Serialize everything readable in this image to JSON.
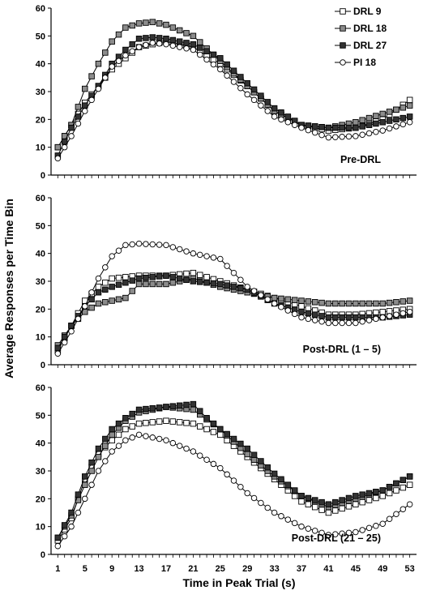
{
  "chart_data": {
    "type": "line",
    "ylabel": "Average Responses per Time Bin",
    "xlabel": "Time in Peak Trial (s)",
    "x_ticks": [
      1,
      5,
      9,
      13,
      17,
      21,
      25,
      29,
      33,
      37,
      41,
      45,
      49,
      53
    ],
    "x_range": [
      0,
      54
    ],
    "legend": {
      "placement": "top-right",
      "entries": [
        "DRL 9",
        "DRL 18",
        "DRL 27",
        "PI 18"
      ]
    },
    "series_styles": [
      {
        "name": "DRL 9",
        "marker": "square",
        "fill": "#ffffff"
      },
      {
        "name": "DRL 18",
        "marker": "square",
        "fill": "#8c8c8c"
      },
      {
        "name": "DRL 27",
        "marker": "square",
        "fill": "#333333"
      },
      {
        "name": "PI 18",
        "marker": "circle",
        "fill": "#ffffff"
      }
    ],
    "panels": [
      {
        "label": "Pre-DRL",
        "ylim": [
          0,
          60
        ],
        "yticks": [
          0,
          10,
          20,
          30,
          40,
          50,
          60
        ],
        "series": [
          {
            "name": "DRL 9",
            "keypoints": [
              [
                1,
                10
              ],
              [
                5,
                26
              ],
              [
                9,
                38
              ],
              [
                13,
                46
              ],
              [
                17,
                48
              ],
              [
                21,
                46
              ],
              [
                25,
                40
              ],
              [
                29,
                32
              ],
              [
                33,
                23
              ],
              [
                37,
                18
              ],
              [
                41,
                16
              ],
              [
                45,
                17
              ],
              [
                49,
                20
              ],
              [
                53,
                27
              ]
            ]
          },
          {
            "name": "DRL 18",
            "keypoints": [
              [
                1,
                10
              ],
              [
                3,
                18
              ],
              [
                5,
                31
              ],
              [
                7,
                40
              ],
              [
                9,
                48
              ],
              [
                11,
                53
              ],
              [
                13,
                54.5
              ],
              [
                15,
                55
              ],
              [
                17,
                54
              ],
              [
                19,
                52
              ],
              [
                21,
                50
              ],
              [
                25,
                41
              ],
              [
                29,
                32
              ],
              [
                33,
                23
              ],
              [
                37,
                18
              ],
              [
                41,
                17
              ],
              [
                45,
                19
              ],
              [
                49,
                22
              ],
              [
                53,
                25
              ]
            ]
          },
          {
            "name": "DRL 27",
            "keypoints": [
              [
                1,
                7
              ],
              [
                3,
                17
              ],
              [
                5,
                25
              ],
              [
                7,
                32
              ],
              [
                9,
                40
              ],
              [
                11,
                45
              ],
              [
                13,
                49
              ],
              [
                15,
                49.5
              ],
              [
                17,
                49
              ],
              [
                21,
                47
              ],
              [
                25,
                42
              ],
              [
                29,
                33
              ],
              [
                33,
                24
              ],
              [
                37,
                18
              ],
              [
                41,
                17
              ],
              [
                45,
                17
              ],
              [
                49,
                19
              ],
              [
                53,
                21
              ]
            ]
          },
          {
            "name": "PI 18",
            "keypoints": [
              [
                1,
                6
              ],
              [
                3,
                14
              ],
              [
                5,
                23
              ],
              [
                7,
                31
              ],
              [
                9,
                39
              ],
              [
                11,
                43
              ],
              [
                13,
                46
              ],
              [
                15,
                47.5
              ],
              [
                17,
                47
              ],
              [
                21,
                45
              ],
              [
                25,
                38
              ],
              [
                29,
                29
              ],
              [
                33,
                21
              ],
              [
                37,
                17
              ],
              [
                41,
                13.5
              ],
              [
                45,
                14
              ],
              [
                49,
                16
              ],
              [
                53,
                19
              ]
            ]
          }
        ]
      },
      {
        "label": "Post-DRL (1 – 5)",
        "ylim": [
          0,
          60
        ],
        "yticks": [
          0,
          10,
          20,
          30,
          40,
          50,
          60
        ],
        "series": [
          {
            "name": "DRL 9",
            "keypoints": [
              [
                1,
                5
              ],
              [
                3,
                14
              ],
              [
                5,
                23
              ],
              [
                7,
                28
              ],
              [
                9,
                31
              ],
              [
                13,
                32
              ],
              [
                17,
                32
              ],
              [
                21,
                33
              ],
              [
                25,
                30
              ],
              [
                29,
                27
              ],
              [
                33,
                24
              ],
              [
                37,
                21
              ],
              [
                41,
                18
              ],
              [
                45,
                18
              ],
              [
                49,
                19
              ],
              [
                53,
                20
              ]
            ]
          },
          {
            "name": "DRL 18",
            "keypoints": [
              [
                1,
                7
              ],
              [
                3,
                14
              ],
              [
                5,
                19
              ],
              [
                7,
                22
              ],
              [
                9,
                23
              ],
              [
                11,
                24
              ],
              [
                13,
                29
              ],
              [
                17,
                29
              ],
              [
                21,
                31
              ],
              [
                25,
                28
              ],
              [
                29,
                26
              ],
              [
                33,
                24
              ],
              [
                37,
                23
              ],
              [
                41,
                22
              ],
              [
                45,
                22
              ],
              [
                49,
                22
              ],
              [
                53,
                23
              ]
            ]
          },
          {
            "name": "DRL 27",
            "keypoints": [
              [
                1,
                6
              ],
              [
                3,
                14
              ],
              [
                5,
                21
              ],
              [
                7,
                26
              ],
              [
                9,
                28
              ],
              [
                13,
                31
              ],
              [
                17,
                32
              ],
              [
                21,
                30
              ],
              [
                25,
                29
              ],
              [
                29,
                27
              ],
              [
                33,
                22
              ],
              [
                37,
                19
              ],
              [
                41,
                17
              ],
              [
                45,
                17
              ],
              [
                49,
                17
              ],
              [
                53,
                18
              ]
            ]
          },
          {
            "name": "PI 18",
            "keypoints": [
              [
                1,
                4
              ],
              [
                3,
                12
              ],
              [
                5,
                21
              ],
              [
                7,
                31
              ],
              [
                9,
                39
              ],
              [
                11,
                43
              ],
              [
                13,
                43.5
              ],
              [
                17,
                43
              ],
              [
                21,
                40
              ],
              [
                25,
                38
              ],
              [
                27,
                33
              ],
              [
                29,
                28
              ],
              [
                33,
                22
              ],
              [
                37,
                17
              ],
              [
                41,
                15
              ],
              [
                45,
                15
              ],
              [
                49,
                17
              ],
              [
                53,
                19
              ]
            ]
          }
        ]
      },
      {
        "label": "Post-DRL (21 – 25)",
        "ylim": [
          0,
          60
        ],
        "yticks": [
          0,
          10,
          20,
          30,
          40,
          50,
          60
        ],
        "series": [
          {
            "name": "DRL 9",
            "keypoints": [
              [
                1,
                5
              ],
              [
                3,
                13
              ],
              [
                5,
                27
              ],
              [
                7,
                36
              ],
              [
                9,
                41
              ],
              [
                11,
                45
              ],
              [
                13,
                47
              ],
              [
                17,
                48
              ],
              [
                21,
                47
              ],
              [
                25,
                43
              ],
              [
                29,
                35
              ],
              [
                33,
                27
              ],
              [
                37,
                19
              ],
              [
                41,
                15
              ],
              [
                45,
                18
              ],
              [
                49,
                21
              ],
              [
                53,
                25
              ]
            ]
          },
          {
            "name": "DRL 18",
            "keypoints": [
              [
                1,
                6
              ],
              [
                3,
                14
              ],
              [
                5,
                25
              ],
              [
                7,
                35
              ],
              [
                9,
                43
              ],
              [
                11,
                48
              ],
              [
                13,
                51
              ],
              [
                17,
                53
              ],
              [
                21,
                52
              ],
              [
                25,
                45
              ],
              [
                29,
                36
              ],
              [
                33,
                28
              ],
              [
                37,
                21
              ],
              [
                41,
                17
              ],
              [
                45,
                20
              ],
              [
                49,
                23
              ],
              [
                53,
                28
              ]
            ]
          },
          {
            "name": "DRL 27",
            "keypoints": [
              [
                1,
                6
              ],
              [
                3,
                15
              ],
              [
                5,
                28
              ],
              [
                7,
                38
              ],
              [
                9,
                45
              ],
              [
                11,
                49
              ],
              [
                13,
                52
              ],
              [
                17,
                53
              ],
              [
                21,
                54
              ],
              [
                23,
                49
              ],
              [
                25,
                45
              ],
              [
                29,
                38
              ],
              [
                33,
                29
              ],
              [
                37,
                21
              ],
              [
                41,
                18
              ],
              [
                45,
                21
              ],
              [
                49,
                23
              ],
              [
                53,
                28
              ]
            ]
          },
          {
            "name": "PI 18",
            "keypoints": [
              [
                1,
                3
              ],
              [
                3,
                10
              ],
              [
                5,
                20
              ],
              [
                7,
                30
              ],
              [
                9,
                37
              ],
              [
                11,
                41
              ],
              [
                13,
                43
              ],
              [
                17,
                41
              ],
              [
                21,
                37
              ],
              [
                25,
                31
              ],
              [
                29,
                22
              ],
              [
                33,
                15
              ],
              [
                37,
                10
              ],
              [
                41,
                7
              ],
              [
                45,
                8
              ],
              [
                49,
                11
              ],
              [
                53,
                18
              ]
            ]
          }
        ]
      }
    ]
  }
}
